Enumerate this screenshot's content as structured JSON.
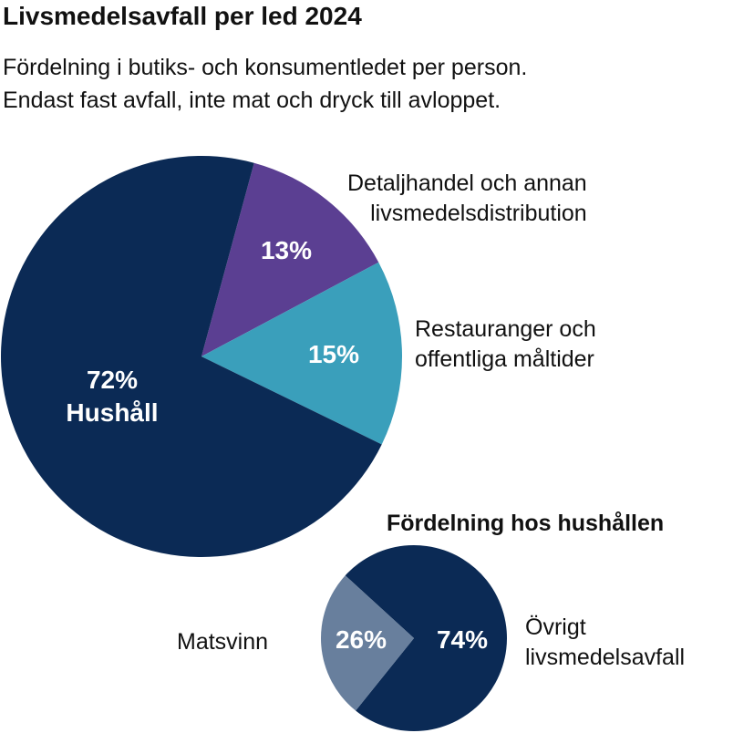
{
  "title": "Livsmedelsavfall per led 2024",
  "subtitle_lines": [
    "Fördelning i butiks- och konsumentledet per person.",
    "Endast fast avfall, inte mat och dryck till avloppet."
  ],
  "chart_data": [
    {
      "type": "pie",
      "slices": [
        {
          "label": "Detaljhandel och annan livsmedelsdistribution",
          "label_lines": [
            "Detaljhandel och annan",
            "livsmedelsdistribution"
          ],
          "value": 13,
          "value_label": "13%",
          "color": "#5b3f92"
        },
        {
          "label": "Restauranger och offentliga måltider",
          "label_lines": [
            "Restauranger och",
            "offentliga måltider"
          ],
          "value": 15,
          "value_label": "15%",
          "color": "#3a9fbb"
        },
        {
          "label": "Hushåll",
          "label_lines": [
            "Hushåll"
          ],
          "value": 72,
          "value_label": "72%",
          "color": "#0b2a55"
        }
      ]
    },
    {
      "type": "pie",
      "title": "Fördelning hos hushållen",
      "slices": [
        {
          "label": "Övrigt livsmedelsavfall",
          "label_lines": [
            "Övrigt",
            "livsmedelsavfall"
          ],
          "value": 74,
          "value_label": "74%",
          "color": "#0b2a55"
        },
        {
          "label": "Matsvinn",
          "label_lines": [
            "Matsvinn"
          ],
          "value": 26,
          "value_label": "26%",
          "color": "#687f9d"
        }
      ]
    }
  ]
}
